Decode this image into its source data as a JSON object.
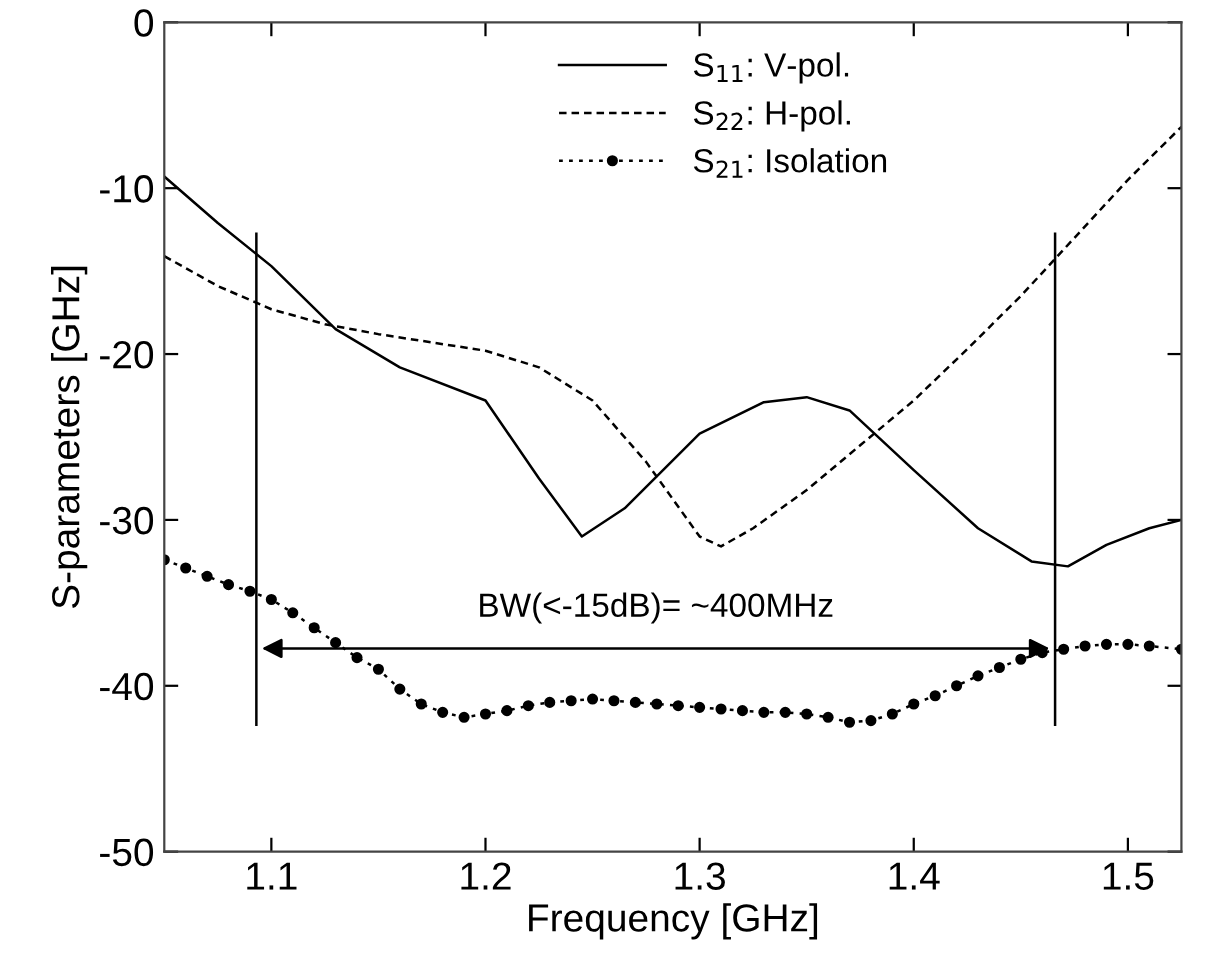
{
  "chart_data": {
    "type": "line",
    "xlabel": "Frequency [GHz]",
    "ylabel": "S-parameters [GHz]",
    "xlim": [
      1.05,
      1.525
    ],
    "ylim": [
      -50,
      0
    ],
    "xticks": [
      1.1,
      1.2,
      1.3,
      1.4,
      1.5
    ],
    "yticks": [
      -50,
      -40,
      -30,
      -20,
      -10,
      0
    ],
    "grid": false,
    "legend": "top",
    "series": [
      {
        "name": "S$_{11}$: V-pol.",
        "color": "#000000",
        "line_style": "solid",
        "x": [
          1.05,
          1.075,
          1.1,
          1.13,
          1.16,
          1.2,
          1.225,
          1.245,
          1.265,
          1.3,
          1.33,
          1.35,
          1.37,
          1.4,
          1.43,
          1.455,
          1.472,
          1.49,
          1.51,
          1.525
        ],
        "values": [
          -9.3,
          -12.1,
          -14.7,
          -18.5,
          -20.8,
          -22.8,
          -27.5,
          -31,
          -29.3,
          -24.8,
          -22.9,
          -22.6,
          -23.4,
          -27,
          -30.5,
          -32.5,
          -32.8,
          -31.5,
          -30.5,
          -30
        ]
      },
      {
        "name": "S$_{22}$: H-pol.",
        "color": "#000000",
        "line_style": "dashed",
        "x": [
          1.05,
          1.075,
          1.1,
          1.125,
          1.15,
          1.2,
          1.225,
          1.25,
          1.275,
          1.3,
          1.31,
          1.325,
          1.35,
          1.375,
          1.4,
          1.425,
          1.45,
          1.475,
          1.5,
          1.525
        ],
        "values": [
          -14.1,
          -15.9,
          -17.3,
          -18.2,
          -18.8,
          -19.8,
          -20.8,
          -22.8,
          -26.5,
          -31,
          -31.6,
          -30.5,
          -28.2,
          -25.5,
          -22.8,
          -19.7,
          -16.5,
          -13,
          -9.5,
          -6.3
        ]
      },
      {
        "name": "S$_{21}$: Isolation",
        "color": "#000000",
        "line_style": "dotted",
        "marker": "circle",
        "x": [
          1.05,
          1.06,
          1.07,
          1.08,
          1.09,
          1.1,
          1.11,
          1.12,
          1.13,
          1.14,
          1.15,
          1.16,
          1.17,
          1.18,
          1.19,
          1.2,
          1.21,
          1.22,
          1.23,
          1.24,
          1.25,
          1.26,
          1.27,
          1.28,
          1.29,
          1.3,
          1.31,
          1.32,
          1.33,
          1.34,
          1.35,
          1.36,
          1.37,
          1.38,
          1.39,
          1.4,
          1.41,
          1.42,
          1.43,
          1.44,
          1.45,
          1.46,
          1.47,
          1.48,
          1.49,
          1.5,
          1.51,
          1.525
        ],
        "values": [
          -32.4,
          -32.9,
          -33.4,
          -33.9,
          -34.3,
          -34.8,
          -35.6,
          -36.5,
          -37.4,
          -38.3,
          -39,
          -40.2,
          -41.1,
          -41.6,
          -41.9,
          -41.7,
          -41.5,
          -41.2,
          -41,
          -40.9,
          -40.8,
          -40.9,
          -41,
          -41.1,
          -41.2,
          -41.3,
          -41.4,
          -41.5,
          -41.6,
          -41.6,
          -41.7,
          -41.9,
          -42.2,
          -42.1,
          -41.7,
          -41.1,
          -40.6,
          -40,
          -39.4,
          -38.9,
          -38.4,
          -38,
          -37.8,
          -37.6,
          -37.5,
          -37.5,
          -37.6,
          -37.8
        ]
      }
    ],
    "ref_lines": [
      {
        "axis": "x",
        "value": 1.093,
        "color": "#000000"
      },
      {
        "axis": "x",
        "value": 1.466,
        "color": "#000000"
      }
    ],
    "annotations": [
      "BW(<-15dB)= ~400MHz"
    ]
  }
}
